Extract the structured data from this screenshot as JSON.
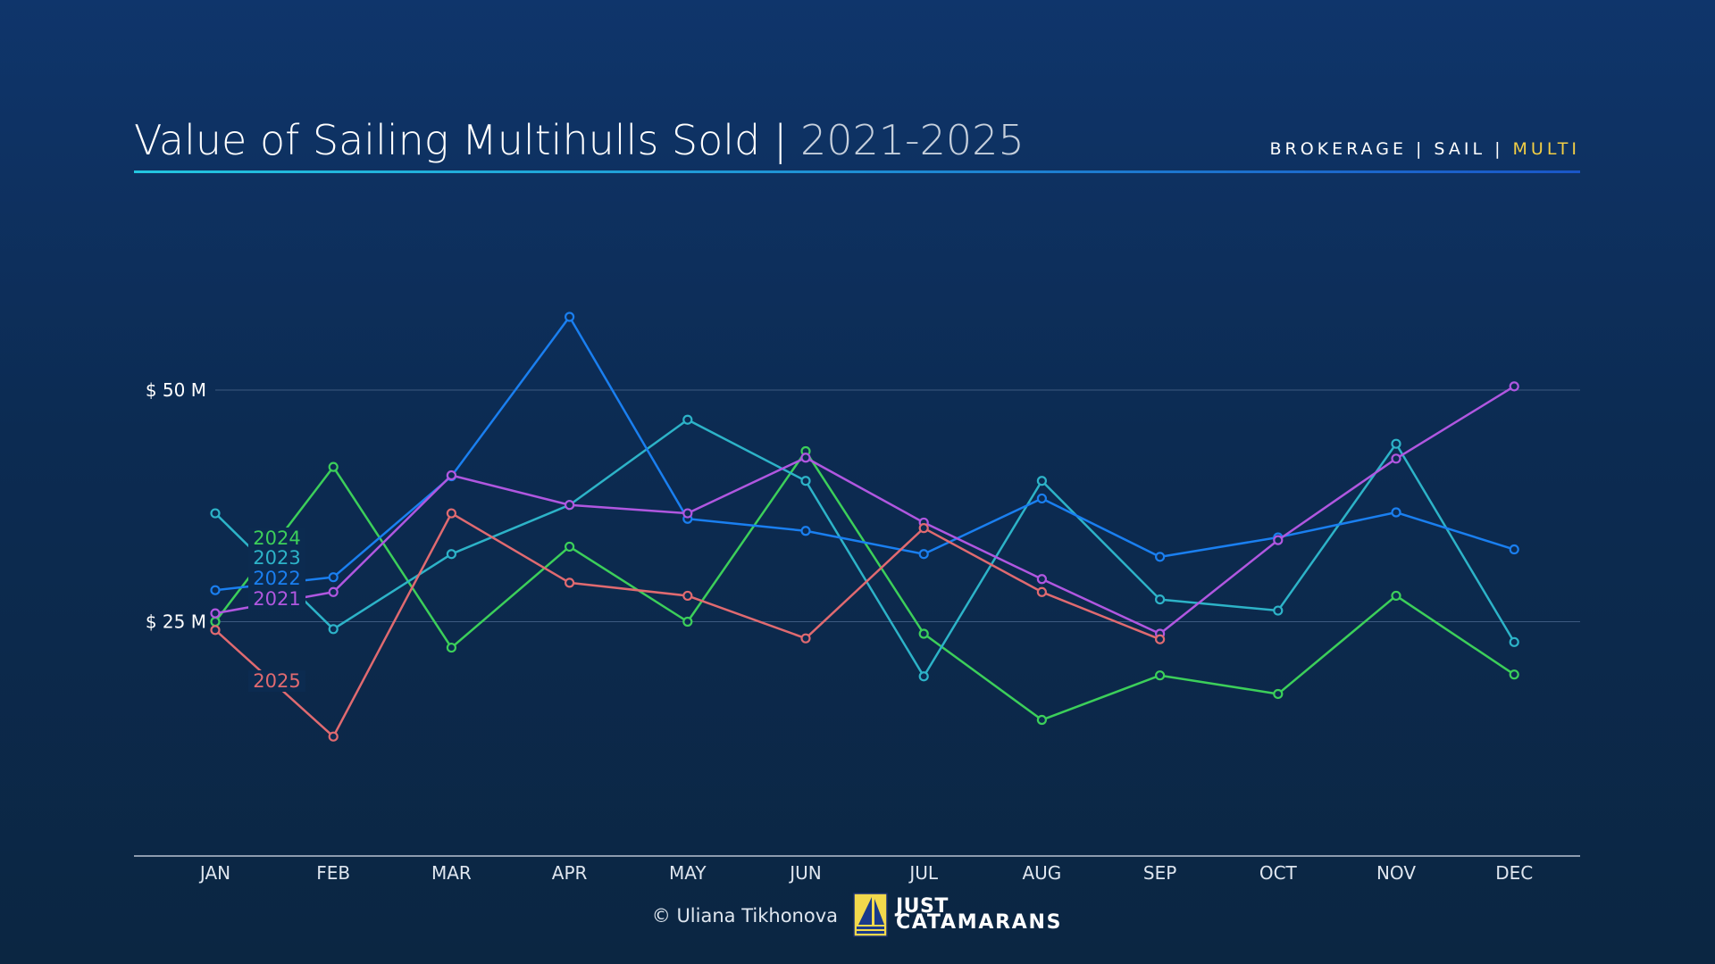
{
  "header": {
    "title": "Value of Sailing Multihulls Sold | ",
    "title_years": "2021-2025",
    "tag_prefix": "BROKERAGE | SAIL | ",
    "tag_highlight": "MULTI"
  },
  "footer": {
    "credit": "© Uliana Tikhonova",
    "logo_line1": "JUST",
    "logo_line2": "CATAMARANS"
  },
  "colors": {
    "accent_rule": "#23c6e0",
    "highlight": "#f3cf45",
    "2021": "#b057e0",
    "2022": "#1a7ff0",
    "2023": "#2db3c8",
    "2024": "#3ccf5a",
    "2025": "#e06a70"
  },
  "chart_data": {
    "type": "line",
    "title": "Value of Sailing Multihulls Sold | 2021-2025",
    "categories": [
      "JAN",
      "FEB",
      "MAR",
      "APR",
      "MAY",
      "JUN",
      "JUL",
      "AUG",
      "SEP",
      "OCT",
      "NOV",
      "DEC"
    ],
    "ylim": [
      0,
      60
    ],
    "yticks": [
      {
        "value": 25,
        "label": "$ 25 M"
      },
      {
        "value": 50,
        "label": "$ 50 M"
      }
    ],
    "grid": "horizontal",
    "legend": "inline-left",
    "series": [
      {
        "name": "2024",
        "color": "#3ccf5a",
        "values": [
          25.0,
          41.7,
          22.2,
          33.1,
          25.0,
          43.4,
          23.7,
          14.4,
          19.2,
          17.2,
          27.8,
          19.3
        ]
      },
      {
        "name": "2023",
        "color": "#2db3c8",
        "values": [
          36.7,
          24.2,
          32.3,
          37.6,
          46.8,
          40.2,
          19.1,
          40.2,
          27.4,
          26.2,
          44.2,
          22.8
        ]
      },
      {
        "name": "2022",
        "color": "#1a7ff0",
        "values": [
          28.4,
          29.8,
          40.7,
          57.9,
          36.1,
          34.8,
          32.3,
          38.3,
          32.0,
          34.1,
          36.8,
          32.8
        ]
      },
      {
        "name": "2021",
        "color": "#b057e0",
        "values": [
          25.9,
          28.2,
          40.8,
          37.6,
          36.7,
          42.7,
          35.7,
          29.6,
          23.7,
          33.8,
          42.6,
          50.4
        ]
      },
      {
        "name": "2025",
        "color": "#e06a70",
        "values": [
          24.1,
          12.6,
          36.7,
          29.2,
          27.8,
          23.2,
          35.1,
          28.2,
          23.1,
          null,
          null,
          null
        ]
      }
    ]
  }
}
